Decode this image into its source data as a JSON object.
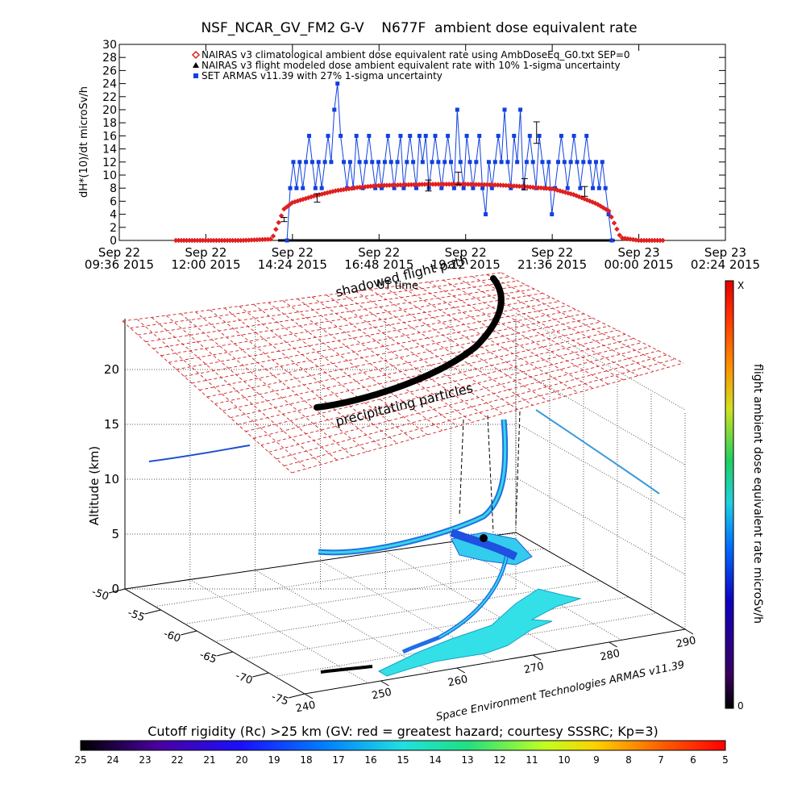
{
  "chart_data": [
    {
      "type": "scatter",
      "title": "NSF_NCAR_GV_FM2 G-V    N677F  ambient dose equivalent rate",
      "ylabel": "dH*(10)/dt microSv/h",
      "ylim": [
        0,
        30
      ],
      "yticks": [
        "0",
        "2",
        "4",
        "6",
        "8",
        "10",
        "12",
        "14",
        "16",
        "18",
        "20",
        "22",
        "24",
        "26",
        "28",
        "30"
      ],
      "xlim": [
        "Sep 22 09:36 2015",
        "Sep 23 02:24 2015"
      ],
      "xticks": [
        {
          "line1": "Sep 22",
          "line2": "09:36 2015"
        },
        {
          "line1": "Sep 22",
          "line2": "12:00 2015"
        },
        {
          "line1": "Sep 22",
          "line2": "14:24 2015"
        },
        {
          "line1": "Sep 22",
          "line2": "16:48 2015"
        },
        {
          "line1": "Sep 22",
          "line2": "19:12 2015"
        },
        {
          "line1": "Sep 22",
          "line2": "21:36 2015"
        },
        {
          "line1": "Sep 23",
          "line2": "00:00 2015"
        },
        {
          "line1": "Sep 23",
          "line2": "02:24 2015"
        }
      ],
      "xlabel": "UT time",
      "legend": [
        {
          "marker": "diamond",
          "color": "#e02020",
          "text": "NAIRAS v3 climatological ambient dose equivalent rate using AmbDoseEq_G0.txt SEP=0"
        },
        {
          "marker": "triangle",
          "color": "#000000",
          "text": "NAIRAS v3 flight modeled dose ambient equivalent rate with 10% 1-sigma uncertainty"
        },
        {
          "marker": "square",
          "color": "#1040e0",
          "text": "SET ARMAS v11.39 with 27% 1-sigma uncertainty"
        }
      ],
      "series": [
        {
          "name": "NAIRAS v3 climatological ambient dose equivalent rate using AmbDoseEq_G0.txt SEP=0",
          "color": "#e02020",
          "points": [
            [
              "Sep 22 11:10 2015",
              0
            ],
            [
              "Sep 22 12:00 2015",
              0
            ],
            [
              "Sep 22 13:00 2015",
              0
            ],
            [
              "Sep 22 13:50 2015",
              0.2
            ],
            [
              "Sep 22 14:10 2015",
              4.8
            ],
            [
              "Sep 22 14:24 2015",
              5.8
            ],
            [
              "Sep 22 15:00 2015",
              6.8
            ],
            [
              "Sep 22 15:36 2015",
              7.6
            ],
            [
              "Sep 22 16:12 2015",
              8.1
            ],
            [
              "Sep 22 16:48 2015",
              8.4
            ],
            [
              "Sep 22 17:30 2015",
              8.5
            ],
            [
              "Sep 22 18:10 2015",
              8.6
            ],
            [
              "Sep 22 19:12 2015",
              8.6
            ],
            [
              "Sep 22 20:00 2015",
              8.5
            ],
            [
              "Sep 22 20:40 2015",
              8.3
            ],
            [
              "Sep 22 21:36 2015",
              7.9
            ],
            [
              "Sep 22 22:12 2015",
              7.0
            ],
            [
              "Sep 22 22:50 2015",
              5.6
            ],
            [
              "Sep 22 23:10 2015",
              4.5
            ],
            [
              "Sep 22 23:30 2015",
              0.4
            ],
            [
              "Sep 23 00:00 2015",
              0
            ],
            [
              "Sep 23 00:40 2015",
              0
            ]
          ]
        },
        {
          "name": "NAIRAS v3 flight modeled dose ambient equivalent rate with 10% 1-sigma uncertainty",
          "color": "#000000",
          "points": [
            [
              "Sep 22 14:10 2015",
              3.2
            ],
            [
              "Sep 22 15:05 2015",
              6.5
            ],
            [
              "Sep 22 18:10 2015",
              8.4
            ],
            [
              "Sep 22 19:00 2015",
              9.5
            ],
            [
              "Sep 22 20:50 2015",
              8.6
            ],
            [
              "Sep 22 21:10 2015",
              16.5
            ],
            [
              "Sep 22 22:30 2015",
              7.5
            ]
          ]
        },
        {
          "name": "SET ARMAS v11.39 with 27% 1-sigma uncertainty",
          "color": "#1040e0",
          "values": [
            0,
            8,
            12,
            8,
            12,
            8,
            12,
            16,
            12,
            8,
            12,
            8,
            12,
            16,
            12,
            20,
            24,
            16,
            12,
            8,
            12,
            8,
            16,
            12,
            8,
            12,
            16,
            12,
            8,
            12,
            8,
            12,
            16,
            12,
            8,
            12,
            16,
            8,
            12,
            16,
            12,
            8,
            16,
            12,
            16,
            8,
            12,
            16,
            12,
            8,
            12,
            16,
            12,
            8,
            20,
            12,
            8,
            16,
            12,
            8,
            12,
            16,
            8,
            4,
            12,
            8,
            12,
            16,
            12,
            20,
            12,
            8,
            16,
            12,
            20,
            8,
            12,
            16,
            12,
            8,
            16,
            12,
            8,
            12,
            4,
            8,
            12,
            16,
            12,
            8,
            12,
            16,
            12,
            8,
            12,
            16,
            12,
            8,
            12,
            8,
            12,
            8,
            4,
            0
          ]
        }
      ]
    },
    {
      "type": "scatter",
      "title": "",
      "zlabel": "Altitude (km)",
      "zticks": [
        "0",
        "5",
        "10",
        "15",
        "20"
      ],
      "lat_ticks": [
        "-50",
        "-55",
        "-60",
        "-65",
        "-70",
        "-75"
      ],
      "lon_ticks": [
        "240",
        "250",
        "260",
        "270",
        "280",
        "290"
      ],
      "annotations": [
        "shadowed flight path",
        "precipitating particles",
        "Space Environment Technologies ARMAS v11.39"
      ],
      "colorbar": {
        "label": "flight ambient dose equivalent rate microSv/h",
        "top": "X",
        "bottom": "0"
      }
    },
    {
      "type": "heatmap",
      "title": "Cutoff rigidity (Rc) >25 km (GV: red = greatest hazard; courtesy SSSRC; Kp=3)",
      "ticks": [
        "25",
        "24",
        "23",
        "22",
        "21",
        "20",
        "19",
        "18",
        "17",
        "16",
        "15",
        "14",
        "13",
        "12",
        "11",
        "10",
        "9",
        "8",
        "7",
        "6",
        "5"
      ]
    }
  ]
}
